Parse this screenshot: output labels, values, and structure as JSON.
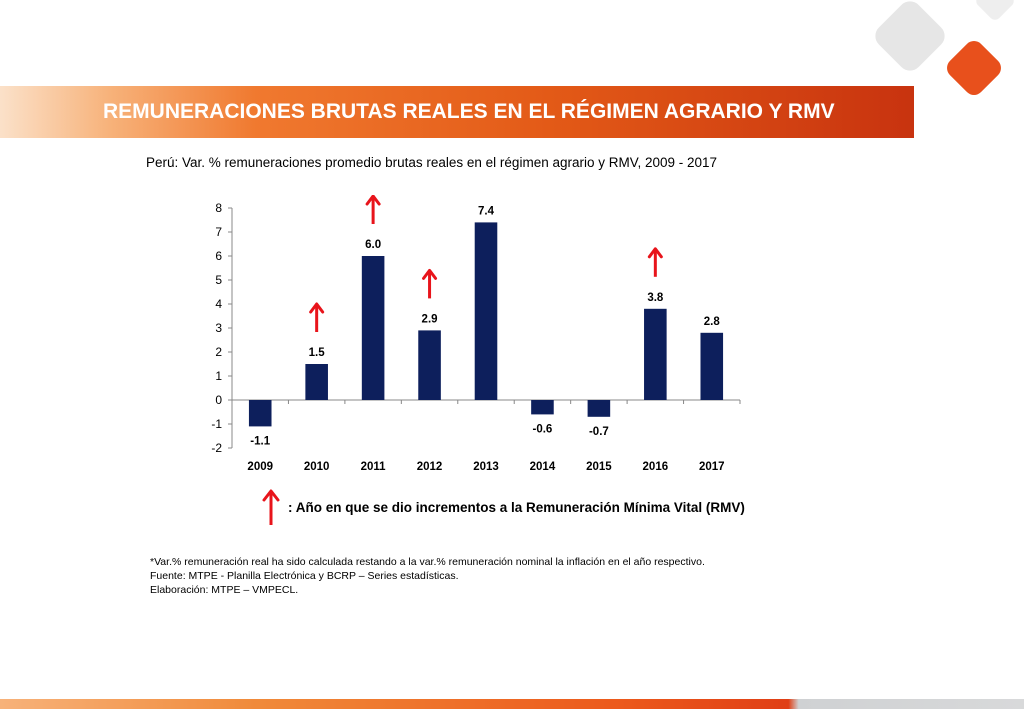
{
  "header": {
    "title": "REMUNERACIONES BRUTAS REALES EN EL RÉGIMEN AGRARIO Y RMV",
    "bar_colors": [
      "#fbe1c9",
      "#f0792f",
      "#c8330f"
    ]
  },
  "logo": {
    "shapes": [
      "gray-diamond-icon",
      "orange-diamond-icon"
    ],
    "colors": [
      "#e6e6e6",
      "#e8501c"
    ]
  },
  "chart_data": {
    "type": "bar",
    "title": "Perú: Var. % remuneraciones promedio brutas reales en el régimen agrario y RMV, 2009 - 2017",
    "categories": [
      "2009",
      "2010",
      "2011",
      "2012",
      "2013",
      "2014",
      "2015",
      "2016",
      "2017"
    ],
    "values": [
      -1.1,
      1.5,
      6.0,
      2.9,
      7.4,
      -0.6,
      -0.7,
      3.8,
      2.8
    ],
    "data_labels": [
      "-1.1",
      "1.5",
      "6.0",
      "2.9",
      "7.4",
      "-0.6",
      "-0.7",
      "3.8",
      "2.8"
    ],
    "yticks": [
      "8",
      "7",
      "6",
      "5",
      "4",
      "3",
      "2",
      "1",
      "0",
      "-1",
      "-2"
    ],
    "ylim": [
      -2,
      8
    ],
    "grid": false,
    "bar_color": "#0d1f5c",
    "rmv_increase_years": [
      "2010",
      "2011",
      "2012",
      "2016"
    ],
    "arrow_color": "#e8141b",
    "xlabel": "",
    "ylabel": ""
  },
  "legend": {
    "text": ": Año en que se dio incrementos a la Remuneración Mínima Vital (RMV)",
    "icon": "red-up-arrow-icon"
  },
  "notes": {
    "line1": "*Var.% remuneración real ha sido calculada restando a la var.% remuneración nominal la inflación en el año respectivo.",
    "line2": "Fuente:  MTPE - Planilla Electrónica y BCRP – Series estadísticas.",
    "line3": "Elaboración: MTPE – VMPECL."
  }
}
